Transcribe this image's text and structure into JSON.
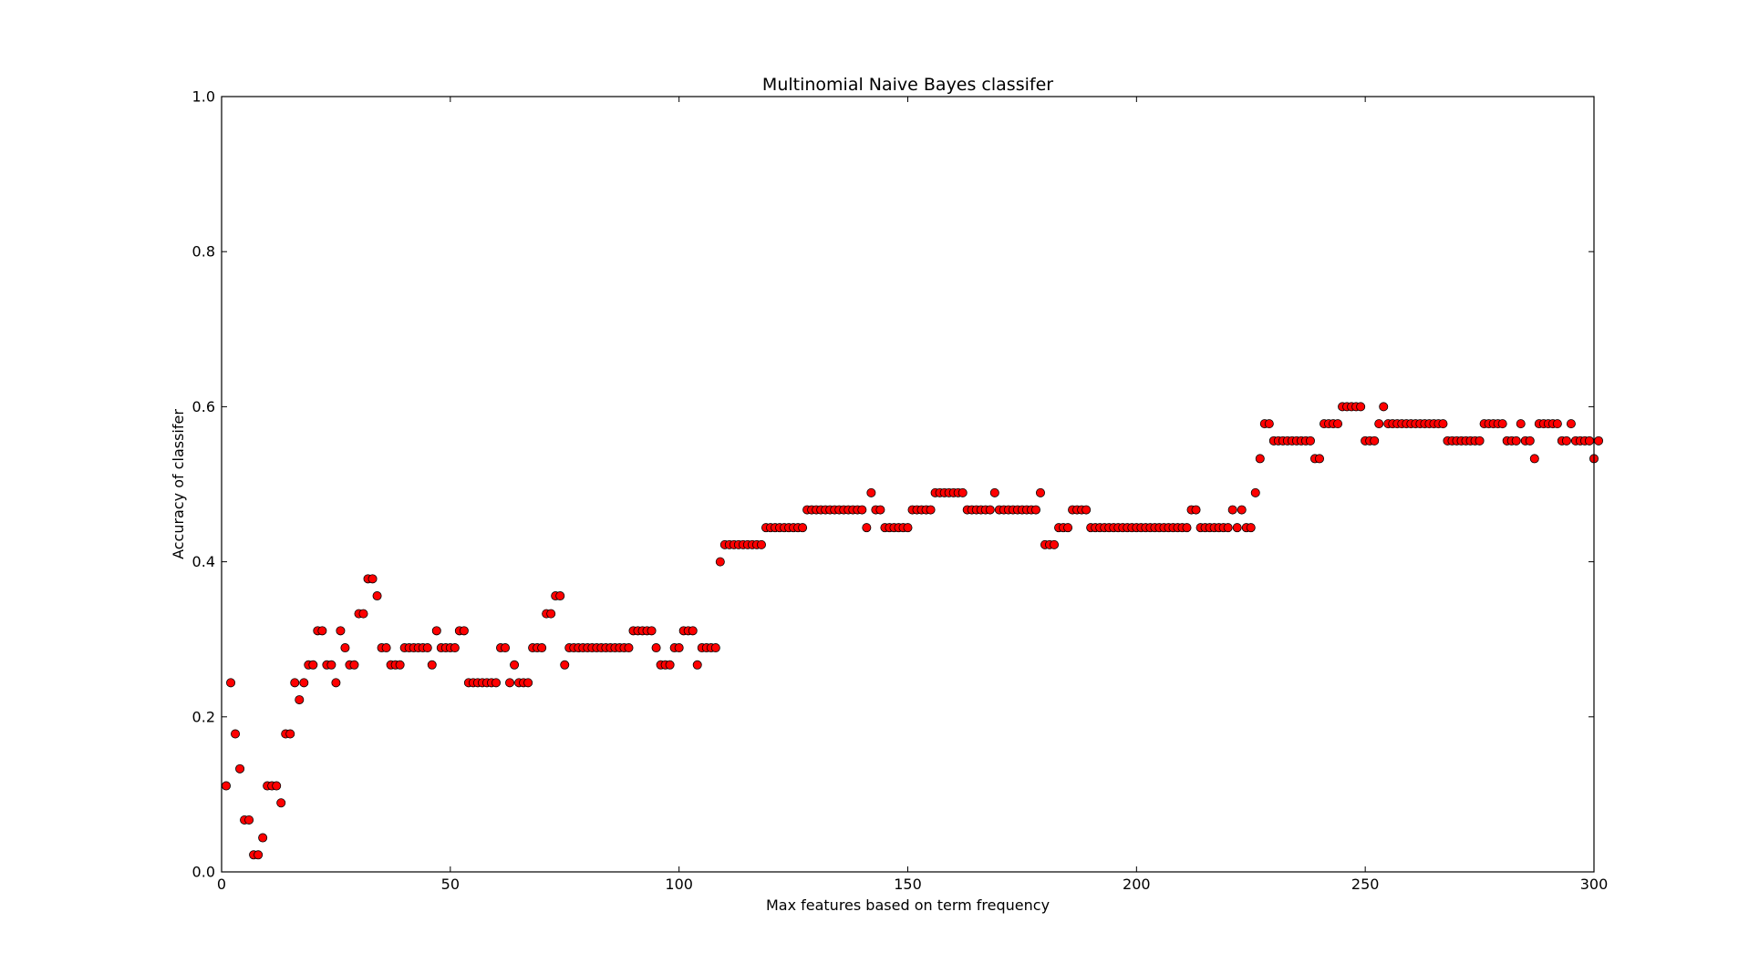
{
  "colors": {
    "marker_fill": "#ff0000",
    "marker_edge": "#000000",
    "axes": "#000000",
    "background": "#ffffff"
  },
  "chart_data": {
    "type": "scatter",
    "title": "Multinomial Naive Bayes classifer",
    "xlabel": "Max features based on term frequency",
    "ylabel": "Accuracy of classifer",
    "xlim": [
      0,
      300
    ],
    "ylim": [
      0.0,
      1.0
    ],
    "xticks": [
      0,
      50,
      100,
      150,
      200,
      250,
      300
    ],
    "yticks": [
      0.0,
      0.2,
      0.4,
      0.6,
      0.8,
      1.0
    ],
    "xtick_labels": [
      "0",
      "50",
      "100",
      "150",
      "200",
      "250",
      "300"
    ],
    "ytick_labels": [
      "0.0",
      "0.2",
      "0.4",
      "0.6",
      "0.8",
      "1.0"
    ],
    "grid": false,
    "legend": null,
    "marker": "circle",
    "x_start": 1,
    "y": [
      0.111,
      0.244,
      0.178,
      0.133,
      0.067,
      0.067,
      0.022,
      0.022,
      0.044,
      0.111,
      0.111,
      0.111,
      0.089,
      0.178,
      0.178,
      0.244,
      0.222,
      0.244,
      0.267,
      0.267,
      0.311,
      0.311,
      0.267,
      0.267,
      0.244,
      0.311,
      0.289,
      0.267,
      0.267,
      0.333,
      0.333,
      0.378,
      0.378,
      0.356,
      0.289,
      0.289,
      0.267,
      0.267,
      0.267,
      0.289,
      0.289,
      0.289,
      0.289,
      0.289,
      0.289,
      0.267,
      0.311,
      0.289,
      0.289,
      0.289,
      0.289,
      0.311,
      0.311,
      0.244,
      0.244,
      0.244,
      0.244,
      0.244,
      0.244,
      0.244,
      0.289,
      0.289,
      0.244,
      0.267,
      0.244,
      0.244,
      0.244,
      0.289,
      0.289,
      0.289,
      0.333,
      0.333,
      0.356,
      0.356,
      0.267,
      0.289,
      0.289,
      0.289,
      0.289,
      0.289,
      0.289,
      0.289,
      0.289,
      0.289,
      0.289,
      0.289,
      0.289,
      0.289,
      0.289,
      0.311,
      0.311,
      0.311,
      0.311,
      0.311,
      0.289,
      0.267,
      0.267,
      0.267,
      0.289,
      0.289,
      0.311,
      0.311,
      0.311,
      0.267,
      0.289,
      0.289,
      0.289,
      0.289,
      0.4,
      0.422,
      0.422,
      0.422,
      0.422,
      0.422,
      0.422,
      0.422,
      0.422,
      0.422,
      0.444,
      0.444,
      0.444,
      0.444,
      0.444,
      0.444,
      0.444,
      0.444,
      0.444,
      0.467,
      0.467,
      0.467,
      0.467,
      0.467,
      0.467,
      0.467,
      0.467,
      0.467,
      0.467,
      0.467,
      0.467,
      0.467,
      0.444,
      0.489,
      0.467,
      0.467,
      0.444,
      0.444,
      0.444,
      0.444,
      0.444,
      0.444,
      0.467,
      0.467,
      0.467,
      0.467,
      0.467,
      0.489,
      0.489,
      0.489,
      0.489,
      0.489,
      0.489,
      0.489,
      0.467,
      0.467,
      0.467,
      0.467,
      0.467,
      0.467,
      0.489,
      0.467,
      0.467,
      0.467,
      0.467,
      0.467,
      0.467,
      0.467,
      0.467,
      0.467,
      0.489,
      0.422,
      0.422,
      0.422,
      0.444,
      0.444,
      0.444,
      0.467,
      0.467,
      0.467,
      0.467,
      0.444,
      0.444,
      0.444,
      0.444,
      0.444,
      0.444,
      0.444,
      0.444,
      0.444,
      0.444,
      0.444,
      0.444,
      0.444,
      0.444,
      0.444,
      0.444,
      0.444,
      0.444,
      0.444,
      0.444,
      0.444,
      0.444,
      0.467,
      0.467,
      0.444,
      0.444,
      0.444,
      0.444,
      0.444,
      0.444,
      0.444,
      0.467,
      0.444,
      0.467,
      0.444,
      0.444,
      0.489,
      0.533,
      0.578,
      0.578,
      0.556,
      0.556,
      0.556,
      0.556,
      0.556,
      0.556,
      0.556,
      0.556,
      0.556,
      0.533,
      0.533,
      0.578,
      0.578,
      0.578,
      0.578,
      0.6,
      0.6,
      0.6,
      0.6,
      0.6,
      0.556,
      0.556,
      0.556,
      0.578,
      0.6,
      0.578,
      0.578,
      0.578,
      0.578,
      0.578,
      0.578,
      0.578,
      0.578,
      0.578,
      0.578,
      0.578,
      0.578,
      0.578,
      0.556,
      0.556,
      0.556,
      0.556,
      0.556,
      0.556,
      0.556,
      0.556,
      0.578,
      0.578,
      0.578,
      0.578,
      0.578,
      0.556,
      0.556,
      0.556,
      0.578,
      0.556,
      0.556,
      0.533,
      0.578,
      0.578,
      0.578,
      0.578,
      0.578,
      0.556,
      0.556,
      0.578,
      0.556,
      0.556,
      0.556,
      0.556,
      0.533,
      0.556
    ]
  }
}
